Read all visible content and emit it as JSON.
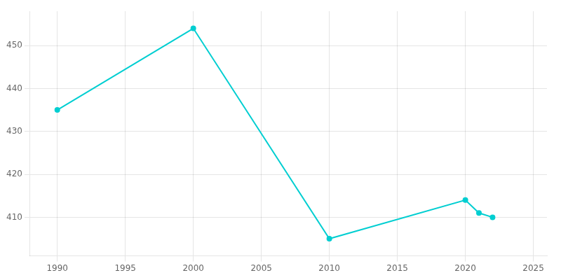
{
  "chart_data": {
    "type": "line",
    "x": [
      1990,
      2000,
      2010,
      2020,
      2021,
      2022
    ],
    "values": [
      435,
      454,
      405,
      414,
      411,
      410
    ],
    "color": "#00CED1",
    "marker": "circle",
    "xlim": [
      1988,
      2026
    ],
    "ylim": [
      401,
      458
    ],
    "xticks": [
      1990,
      1995,
      2000,
      2005,
      2010,
      2015,
      2020,
      2025
    ],
    "yticks": [
      410,
      420,
      430,
      440,
      450
    ],
    "grid": true
  }
}
